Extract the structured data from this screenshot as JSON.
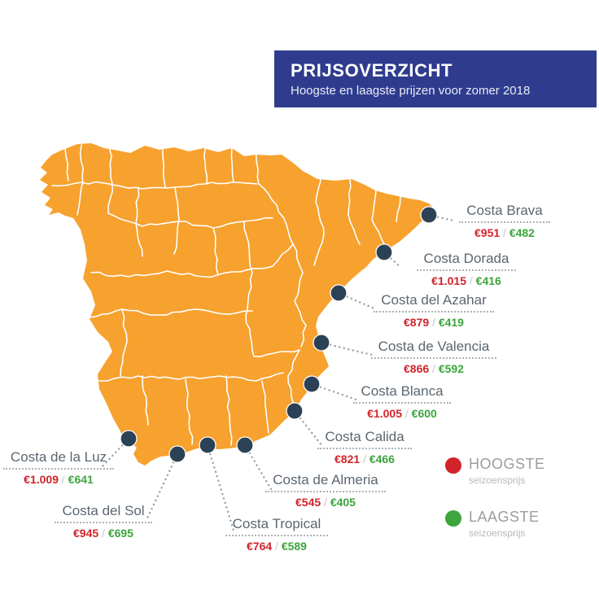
{
  "header": {
    "title": "PRIJSOVERZICHT",
    "subtitle": "Hoogste en laagste prijzen voor zomer 2018"
  },
  "price_separator": "/",
  "locations": [
    {
      "name": "Costa Brava",
      "high": "€951",
      "low": "€482"
    },
    {
      "name": "Costa Dorada",
      "high": "€1.015",
      "low": "€416"
    },
    {
      "name": "Costa del Azahar",
      "high": "€879",
      "low": "€419"
    },
    {
      "name": "Costa de Valencia",
      "high": "€866",
      "low": "€592"
    },
    {
      "name": "Costa Blanca",
      "high": "€1.005",
      "low": "€600"
    },
    {
      "name": "Costa Calida",
      "high": "€821",
      "low": "€466"
    },
    {
      "name": "Costa de Almeria",
      "high": "€545",
      "low": "€405"
    },
    {
      "name": "Costa Tropical",
      "high": "€764",
      "low": "€589"
    },
    {
      "name": "Costa del Sol",
      "high": "€945",
      "low": "€695"
    },
    {
      "name": "Costa de la Luz",
      "high": "€1.009",
      "low": "€641"
    }
  ],
  "legend": [
    {
      "label": "HOOGSTE",
      "sublabel": "seizoensprijs",
      "color": "#d2232a"
    },
    {
      "label": "LAAGSTE",
      "sublabel": "seizoensprijs",
      "color": "#3ca53c"
    }
  ],
  "colors": {
    "map_fill": "#f7a12e",
    "header_bg": "#2f3c8e",
    "marker": "#2b4156",
    "high_price": "#d2232a",
    "low_price": "#3ca53c",
    "label_text": "#5c6670"
  }
}
